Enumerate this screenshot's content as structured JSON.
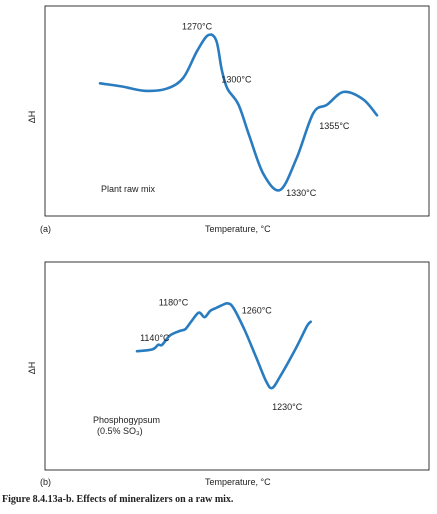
{
  "figure_caption": "Figure 8.4.13a-b. Effects of mineralizers on a raw mix.",
  "chart_data": [
    {
      "type": "line",
      "panel_label": "(a)",
      "xlabel": "Temperature, °C",
      "ylabel": "ΔH",
      "grid": false,
      "legend": "none",
      "sample_label": "Plant raw mix",
      "series": [
        {
          "points": [
            [
              0.0,
              0.5
            ],
            [
              0.08,
              0.53
            ],
            [
              0.16,
              0.57
            ],
            [
              0.24,
              0.55
            ],
            [
              0.3,
              0.45
            ],
            [
              0.35,
              0.2
            ],
            [
              0.39,
              0.05
            ],
            [
              0.42,
              0.1
            ],
            [
              0.44,
              0.38
            ],
            [
              0.46,
              0.55
            ],
            [
              0.5,
              0.7
            ],
            [
              0.54,
              1.0
            ],
            [
              0.59,
              1.35
            ],
            [
              0.65,
              1.5
            ],
            [
              0.71,
              1.2
            ],
            [
              0.77,
              0.78
            ],
            [
              0.82,
              0.7
            ],
            [
              0.88,
              0.58
            ],
            [
              0.95,
              0.65
            ],
            [
              1.0,
              0.8
            ]
          ]
        }
      ],
      "annotations": [
        {
          "text": "1270°C",
          "x": 0.39,
          "y": 0.05,
          "role": "peak"
        },
        {
          "text": "1300°C",
          "x": 0.46,
          "y": 0.55,
          "role": "shoulder"
        },
        {
          "text": "1330°C",
          "x": 0.65,
          "y": 1.5,
          "role": "trough"
        },
        {
          "text": "1355°C",
          "x": 0.77,
          "y": 0.78,
          "role": "shoulder"
        }
      ]
    },
    {
      "type": "line",
      "panel_label": "(b)",
      "xlabel": "Temperature, °C",
      "ylabel": "ΔH",
      "grid": false,
      "legend": "none",
      "sample_label": "Phosphogypsum",
      "sample_sublabel": "(0.5% SO₃)",
      "series": [
        {
          "points": [
            [
              0.0,
              0.72
            ],
            [
              0.08,
              0.7
            ],
            [
              0.11,
              0.65
            ],
            [
              0.13,
              0.65
            ],
            [
              0.17,
              0.55
            ],
            [
              0.22,
              0.5
            ],
            [
              0.25,
              0.48
            ],
            [
              0.28,
              0.4
            ],
            [
              0.32,
              0.3
            ],
            [
              0.35,
              0.35
            ],
            [
              0.38,
              0.28
            ],
            [
              0.41,
              0.25
            ],
            [
              0.44,
              0.22
            ],
            [
              0.47,
              0.2
            ],
            [
              0.5,
              0.25
            ],
            [
              0.56,
              0.5
            ],
            [
              0.62,
              0.8
            ],
            [
              0.67,
              1.05
            ],
            [
              0.7,
              1.12
            ],
            [
              0.74,
              1.0
            ],
            [
              0.82,
              0.7
            ],
            [
              0.88,
              0.45
            ],
            [
              0.9,
              0.4
            ]
          ]
        }
      ],
      "annotations": [
        {
          "text": "1140°C",
          "x": 0.13,
          "y": 0.65,
          "role": "shoulder"
        },
        {
          "text": "1180°C",
          "x": 0.32,
          "y": 0.3,
          "role": "peak"
        },
        {
          "text": "1260°C",
          "x": 0.47,
          "y": 0.2,
          "role": "peak"
        },
        {
          "text": "1230°C",
          "x": 0.7,
          "y": 1.12,
          "role": "trough"
        }
      ]
    }
  ]
}
